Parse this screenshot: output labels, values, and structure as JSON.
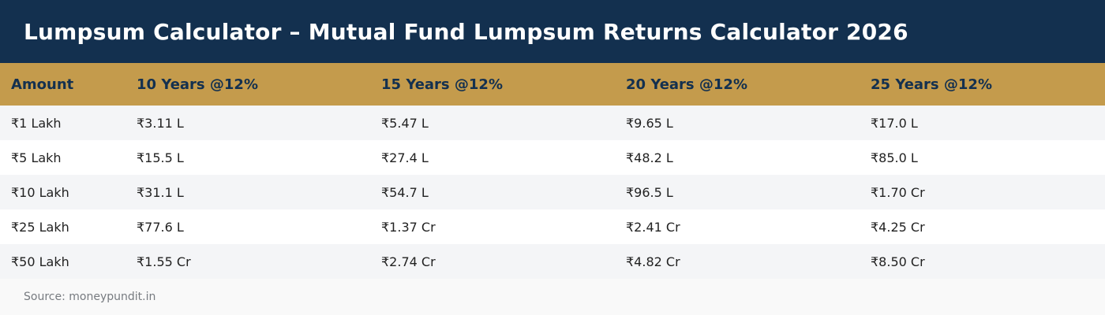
{
  "header": {
    "title": "Lumpsum Calculator – Mutual Fund Lumpsum Returns Calculator 2026"
  },
  "table": {
    "columns": [
      "Amount",
      "10 Years @12%",
      "15 Years @12%",
      "20 Years @12%",
      "25 Years @12%"
    ],
    "rows": [
      [
        "₹1 Lakh",
        "₹3.11 L",
        "₹5.47 L",
        "₹9.65 L",
        "₹17.0 L"
      ],
      [
        "₹5 Lakh",
        "₹15.5 L",
        "₹27.4 L",
        "₹48.2 L",
        "₹85.0 L"
      ],
      [
        "₹10 Lakh",
        "₹31.1 L",
        "₹54.7 L",
        "₹96.5 L",
        "₹1.70 Cr"
      ],
      [
        "₹25 Lakh",
        "₹77.6 L",
        "₹1.37 Cr",
        "₹2.41 Cr",
        "₹4.25 Cr"
      ],
      [
        "₹50 Lakh",
        "₹1.55 Cr",
        "₹2.74 Cr",
        "₹4.82 Cr",
        "₹8.50 Cr"
      ]
    ]
  },
  "footer": {
    "source": "Source: moneypundit.in"
  },
  "colors": {
    "header_bg": "#13304f",
    "table_header_bg": "#c49b4c",
    "row_alt_bg": "#f4f5f7"
  }
}
